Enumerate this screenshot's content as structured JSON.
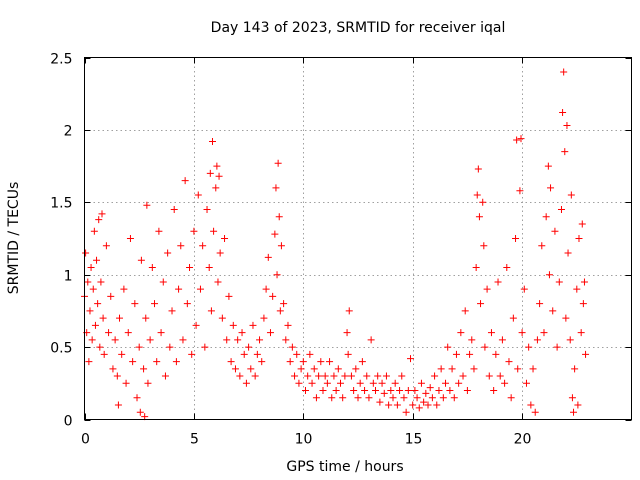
{
  "chart_data": {
    "type": "scatter",
    "title": "Day 143 of 2023, SRMTID for receiver iqal",
    "xlabel": "GPS time / hours",
    "ylabel": "SRMTID / TECUs",
    "xlim": [
      0,
      25
    ],
    "ylim": [
      0,
      2.5
    ],
    "xticks": [
      0,
      5,
      10,
      15,
      20
    ],
    "xtick_labels": [
      "0",
      "5",
      "10",
      "15",
      "20"
    ],
    "yticks": [
      0,
      0.5,
      1,
      1.5,
      2,
      2.5
    ],
    "ytick_labels": [
      "0",
      "0.5",
      "1",
      "1.5",
      "2",
      "2.5"
    ],
    "grid": true,
    "marker": "+",
    "color": "#ff0000",
    "series": [
      {
        "name": "SRMTID",
        "points": [
          [
            0.0,
            0.85
          ],
          [
            0.05,
            1.15
          ],
          [
            0.1,
            0.6
          ],
          [
            0.15,
            0.95
          ],
          [
            0.2,
            0.4
          ],
          [
            0.25,
            0.75
          ],
          [
            0.3,
            1.05
          ],
          [
            0.35,
            0.55
          ],
          [
            0.4,
            0.9
          ],
          [
            0.45,
            1.3
          ],
          [
            0.5,
            0.65
          ],
          [
            0.55,
            1.1
          ],
          [
            0.6,
            0.8
          ],
          [
            0.65,
            1.38
          ],
          [
            0.7,
            0.5
          ],
          [
            0.75,
            0.95
          ],
          [
            0.8,
            1.42
          ],
          [
            0.85,
            0.7
          ],
          [
            0.9,
            0.45
          ],
          [
            1.0,
            1.2
          ],
          [
            1.1,
            0.6
          ],
          [
            1.2,
            0.85
          ],
          [
            1.3,
            0.35
          ],
          [
            1.4,
            0.55
          ],
          [
            1.5,
            0.3
          ],
          [
            1.55,
            0.1
          ],
          [
            1.6,
            0.7
          ],
          [
            1.7,
            0.45
          ],
          [
            1.8,
            0.9
          ],
          [
            1.9,
            0.25
          ],
          [
            2.0,
            0.6
          ],
          [
            2.1,
            1.25
          ],
          [
            2.2,
            0.4
          ],
          [
            2.3,
            0.8
          ],
          [
            2.4,
            0.15
          ],
          [
            2.5,
            0.5
          ],
          [
            2.55,
            0.05
          ],
          [
            2.6,
            1.1
          ],
          [
            2.7,
            0.35
          ],
          [
            2.75,
            0.02
          ],
          [
            2.8,
            0.7
          ],
          [
            2.85,
            1.48
          ],
          [
            2.9,
            0.25
          ],
          [
            3.0,
            0.55
          ],
          [
            3.1,
            1.05
          ],
          [
            3.2,
            0.8
          ],
          [
            3.3,
            0.4
          ],
          [
            3.4,
            1.3
          ],
          [
            3.5,
            0.6
          ],
          [
            3.6,
            0.95
          ],
          [
            3.7,
            0.3
          ],
          [
            3.8,
            1.15
          ],
          [
            3.9,
            0.5
          ],
          [
            4.0,
            0.75
          ],
          [
            4.1,
            1.45
          ],
          [
            4.2,
            0.4
          ],
          [
            4.3,
            0.9
          ],
          [
            4.4,
            1.2
          ],
          [
            4.5,
            0.55
          ],
          [
            4.6,
            1.65
          ],
          [
            4.7,
            0.8
          ],
          [
            4.8,
            1.05
          ],
          [
            4.9,
            0.45
          ],
          [
            5.0,
            1.3
          ],
          [
            5.1,
            0.65
          ],
          [
            5.2,
            1.55
          ],
          [
            5.3,
            0.9
          ],
          [
            5.4,
            1.2
          ],
          [
            5.5,
            0.5
          ],
          [
            5.6,
            1.45
          ],
          [
            5.7,
            1.05
          ],
          [
            5.75,
            1.7
          ],
          [
            5.8,
            0.75
          ],
          [
            5.85,
            1.92
          ],
          [
            5.9,
            1.3
          ],
          [
            6.0,
            1.6
          ],
          [
            6.05,
            1.75
          ],
          [
            6.1,
            0.95
          ],
          [
            6.15,
            1.68
          ],
          [
            6.2,
            1.15
          ],
          [
            6.3,
            0.7
          ],
          [
            6.4,
            1.25
          ],
          [
            6.5,
            0.55
          ],
          [
            6.6,
            0.85
          ],
          [
            6.7,
            0.4
          ],
          [
            6.8,
            0.65
          ],
          [
            6.9,
            0.35
          ],
          [
            7.0,
            0.55
          ],
          [
            7.1,
            0.3
          ],
          [
            7.2,
            0.6
          ],
          [
            7.3,
            0.45
          ],
          [
            7.4,
            0.25
          ],
          [
            7.5,
            0.5
          ],
          [
            7.6,
            0.35
          ],
          [
            7.7,
            0.65
          ],
          [
            7.8,
            0.3
          ],
          [
            7.9,
            0.45
          ],
          [
            8.0,
            0.55
          ],
          [
            8.1,
            0.4
          ],
          [
            8.2,
            0.7
          ],
          [
            8.3,
            0.9
          ],
          [
            8.4,
            1.12
          ],
          [
            8.5,
            0.6
          ],
          [
            8.6,
            0.85
          ],
          [
            8.7,
            1.28
          ],
          [
            8.75,
            1.6
          ],
          [
            8.8,
            1.0
          ],
          [
            8.85,
            1.77
          ],
          [
            8.9,
            1.4
          ],
          [
            8.95,
            0.75
          ],
          [
            9.0,
            1.2
          ],
          [
            9.1,
            0.8
          ],
          [
            9.2,
            0.55
          ],
          [
            9.3,
            0.65
          ],
          [
            9.4,
            0.4
          ],
          [
            9.5,
            0.5
          ],
          [
            9.6,
            0.3
          ],
          [
            9.7,
            0.45
          ],
          [
            9.8,
            0.25
          ],
          [
            9.9,
            0.35
          ],
          [
            10.0,
            0.4
          ],
          [
            10.1,
            0.2
          ],
          [
            10.2,
            0.3
          ],
          [
            10.3,
            0.45
          ],
          [
            10.4,
            0.25
          ],
          [
            10.5,
            0.35
          ],
          [
            10.6,
            0.15
          ],
          [
            10.7,
            0.3
          ],
          [
            10.8,
            0.4
          ],
          [
            10.9,
            0.2
          ],
          [
            11.0,
            0.3
          ],
          [
            11.1,
            0.25
          ],
          [
            11.2,
            0.4
          ],
          [
            11.3,
            0.15
          ],
          [
            11.4,
            0.3
          ],
          [
            11.5,
            0.2
          ],
          [
            11.6,
            0.35
          ],
          [
            11.7,
            0.25
          ],
          [
            11.8,
            0.15
          ],
          [
            11.9,
            0.3
          ],
          [
            12.0,
            0.6
          ],
          [
            12.05,
            0.45
          ],
          [
            12.1,
            0.75
          ],
          [
            12.2,
            0.3
          ],
          [
            12.3,
            0.2
          ],
          [
            12.4,
            0.35
          ],
          [
            12.5,
            0.15
          ],
          [
            12.6,
            0.25
          ],
          [
            12.7,
            0.4
          ],
          [
            12.8,
            0.2
          ],
          [
            12.9,
            0.3
          ],
          [
            13.0,
            0.15
          ],
          [
            13.1,
            0.55
          ],
          [
            13.2,
            0.25
          ],
          [
            13.3,
            0.2
          ],
          [
            13.4,
            0.3
          ],
          [
            13.5,
            0.12
          ],
          [
            13.6,
            0.25
          ],
          [
            13.7,
            0.18
          ],
          [
            13.8,
            0.3
          ],
          [
            13.9,
            0.1
          ],
          [
            14.0,
            0.2
          ],
          [
            14.1,
            0.15
          ],
          [
            14.2,
            0.25
          ],
          [
            14.3,
            0.1
          ],
          [
            14.4,
            0.2
          ],
          [
            14.5,
            0.3
          ],
          [
            14.6,
            0.15
          ],
          [
            14.7,
            0.05
          ],
          [
            14.8,
            0.2
          ],
          [
            14.9,
            0.42
          ],
          [
            15.0,
            0.1
          ],
          [
            15.1,
            0.2
          ],
          [
            15.2,
            0.15
          ],
          [
            15.3,
            0.08
          ],
          [
            15.4,
            0.25
          ],
          [
            15.5,
            0.12
          ],
          [
            15.6,
            0.18
          ],
          [
            15.7,
            0.1
          ],
          [
            15.8,
            0.22
          ],
          [
            15.9,
            0.15
          ],
          [
            16.0,
            0.3
          ],
          [
            16.1,
            0.1
          ],
          [
            16.2,
            0.2
          ],
          [
            16.3,
            0.35
          ],
          [
            16.4,
            0.15
          ],
          [
            16.5,
            0.25
          ],
          [
            16.6,
            0.5
          ],
          [
            16.7,
            0.2
          ],
          [
            16.8,
            0.35
          ],
          [
            16.9,
            0.15
          ],
          [
            17.0,
            0.45
          ],
          [
            17.1,
            0.25
          ],
          [
            17.2,
            0.6
          ],
          [
            17.3,
            0.3
          ],
          [
            17.4,
            0.75
          ],
          [
            17.5,
            0.2
          ],
          [
            17.6,
            0.45
          ],
          [
            17.7,
            0.55
          ],
          [
            17.8,
            0.35
          ],
          [
            17.9,
            1.05
          ],
          [
            17.95,
            1.55
          ],
          [
            18.0,
            1.73
          ],
          [
            18.05,
            1.4
          ],
          [
            18.1,
            0.8
          ],
          [
            18.2,
            1.5
          ],
          [
            18.25,
            1.2
          ],
          [
            18.3,
            0.5
          ],
          [
            18.4,
            0.9
          ],
          [
            18.5,
            0.3
          ],
          [
            18.6,
            0.6
          ],
          [
            18.7,
            0.2
          ],
          [
            18.8,
            0.45
          ],
          [
            18.9,
            0.95
          ],
          [
            19.0,
            0.3
          ],
          [
            19.1,
            0.55
          ],
          [
            19.2,
            0.25
          ],
          [
            19.3,
            1.05
          ],
          [
            19.4,
            0.4
          ],
          [
            19.5,
            0.15
          ],
          [
            19.6,
            0.7
          ],
          [
            19.7,
            1.25
          ],
          [
            19.75,
            1.93
          ],
          [
            19.8,
            0.35
          ],
          [
            19.9,
            1.58
          ],
          [
            19.95,
            1.94
          ],
          [
            20.0,
            0.6
          ],
          [
            20.1,
            0.9
          ],
          [
            20.2,
            0.25
          ],
          [
            20.3,
            0.5
          ],
          [
            20.4,
            0.1
          ],
          [
            20.5,
            0.35
          ],
          [
            20.6,
            0.05
          ],
          [
            20.7,
            0.55
          ],
          [
            20.8,
            0.8
          ],
          [
            20.9,
            1.2
          ],
          [
            21.0,
            0.6
          ],
          [
            21.1,
            1.4
          ],
          [
            21.2,
            1.75
          ],
          [
            21.25,
            1.0
          ],
          [
            21.3,
            1.6
          ],
          [
            21.4,
            0.75
          ],
          [
            21.5,
            1.3
          ],
          [
            21.6,
            0.5
          ],
          [
            21.7,
            0.95
          ],
          [
            21.8,
            1.45
          ],
          [
            21.85,
            2.12
          ],
          [
            21.9,
            2.4
          ],
          [
            21.95,
            1.85
          ],
          [
            22.0,
            0.7
          ],
          [
            22.05,
            2.03
          ],
          [
            22.1,
            1.15
          ],
          [
            22.2,
            0.55
          ],
          [
            22.25,
            1.55
          ],
          [
            22.3,
            0.15
          ],
          [
            22.35,
            0.05
          ],
          [
            22.4,
            0.35
          ],
          [
            22.5,
            0.9
          ],
          [
            22.55,
            0.1
          ],
          [
            22.6,
            1.25
          ],
          [
            22.7,
            0.6
          ],
          [
            22.75,
            1.35
          ],
          [
            22.8,
            0.8
          ],
          [
            22.85,
            0.95
          ],
          [
            22.9,
            0.45
          ]
        ]
      }
    ]
  }
}
